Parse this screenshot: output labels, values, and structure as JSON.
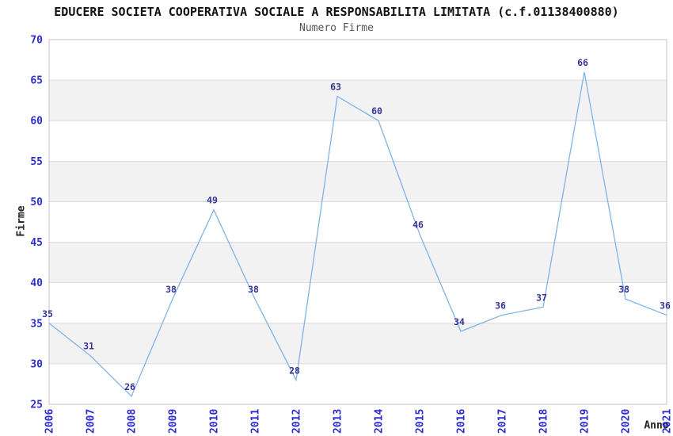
{
  "header": {
    "title": "EDUCERE SOCIETA COOPERATIVA SOCIALE A RESPONSABILITA LIMITATA (c.f.01138400880)",
    "subtitle": "Numero Firme"
  },
  "chart_data": {
    "type": "line",
    "title": "EDUCERE SOCIETA COOPERATIVA SOCIALE A RESPONSABILITA LIMITATA (c.f.01138400880)",
    "subtitle": "Numero Firme",
    "categories": [
      "2006",
      "2007",
      "2008",
      "2009",
      "2010",
      "2011",
      "2012",
      "2013",
      "2014",
      "2015",
      "2016",
      "2017",
      "2018",
      "2019",
      "2020",
      "2021"
    ],
    "values": [
      35,
      31,
      26,
      38,
      49,
      38,
      28,
      63,
      60,
      46,
      34,
      36,
      37,
      66,
      38,
      36
    ],
    "xlabel": "Anno",
    "ylabel": "Firme",
    "ylim": [
      25,
      70
    ],
    "ytick_step": 5,
    "grid": true,
    "legend": "none",
    "data_labels_shown": true,
    "colors": {
      "line": "#7fb3e8",
      "tick_label": "#2d2dd1",
      "data_label": "#333399",
      "band": "#f2f2f2",
      "grid_line": "#dcdcdc",
      "plot_border": "#c3c3c3",
      "background": "#ffffff"
    }
  }
}
